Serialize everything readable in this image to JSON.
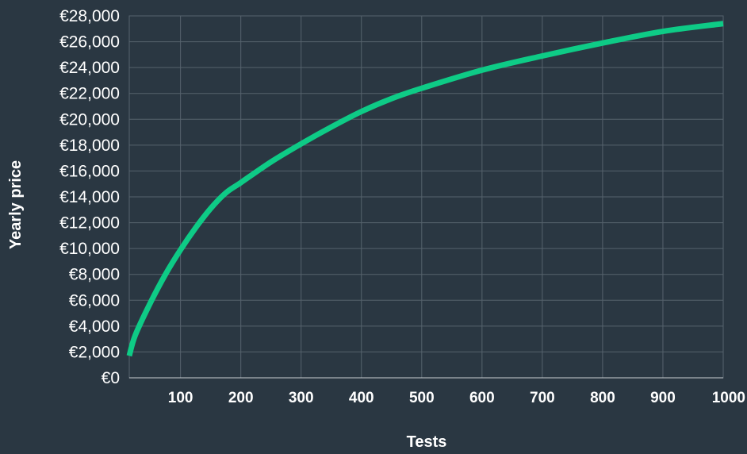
{
  "chart_data": {
    "type": "line",
    "title": "",
    "xlabel": "Tests",
    "ylabel": "Yearly price",
    "xlim": [
      15,
      1000
    ],
    "ylim": [
      0,
      28000
    ],
    "x_ticks": [
      100,
      200,
      300,
      400,
      500,
      600,
      700,
      800,
      900,
      1000
    ],
    "x_tick_labels": [
      "100",
      "200",
      "300",
      "400",
      "500",
      "600",
      "700",
      "800",
      "900",
      "1000"
    ],
    "y_ticks": [
      0,
      2000,
      4000,
      6000,
      8000,
      10000,
      12000,
      14000,
      16000,
      18000,
      20000,
      22000,
      24000,
      26000,
      28000
    ],
    "y_tick_labels": [
      "€0",
      "€2,000",
      "€4,000",
      "€6,000",
      "€8,000",
      "€10,000",
      "€12,000",
      "€14,000",
      "€16,000",
      "€18,000",
      "€20,000",
      "€22,000",
      "€24,000",
      "€26,000",
      "€28,000"
    ],
    "grid": true,
    "series": [
      {
        "x": [
          15,
          25,
          50,
          75,
          100,
          125,
          150,
          175,
          200,
          250,
          300,
          350,
          400,
          450,
          500,
          600,
          700,
          800,
          900,
          1000
        ],
        "values": [
          1700,
          3300,
          5800,
          8000,
          9900,
          11600,
          13100,
          14300,
          15100,
          16700,
          18100,
          19400,
          20600,
          21600,
          22400,
          23800,
          24900,
          25900,
          26800,
          27400
        ],
        "color": "#0ecb86"
      }
    ]
  },
  "colors": {
    "background": "#2a3742",
    "grid": "#56636d",
    "line": "#0ecb86",
    "text": "#ffffff"
  }
}
